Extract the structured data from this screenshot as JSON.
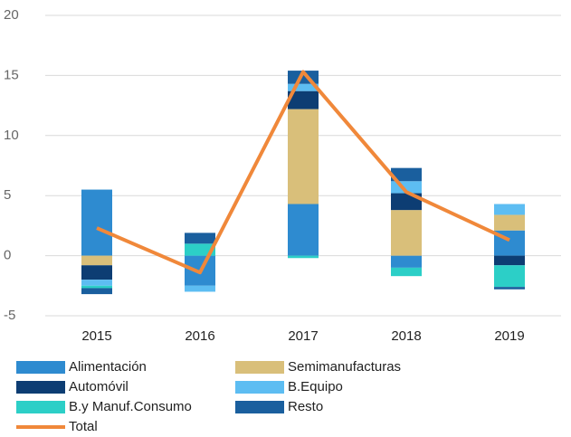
{
  "chart_data": {
    "type": "bar",
    "stacked": true,
    "categories": [
      "2015",
      "2016",
      "2017",
      "2018",
      "2019"
    ],
    "series": [
      {
        "name": "Alimentación",
        "color": "#2e8bd0",
        "values": [
          5.5,
          -2.5,
          4.3,
          -1.0,
          2.1
        ]
      },
      {
        "name": "Semimanufacturas",
        "color": "#d9bf7a",
        "values": [
          -0.8,
          0,
          7.9,
          3.8,
          1.3
        ]
      },
      {
        "name": "Automóvil",
        "color": "#0d3d73",
        "values": [
          -1.2,
          0,
          1.5,
          1.4,
          -0.8
        ]
      },
      {
        "name": "B.Equipo",
        "color": "#5dbdf2",
        "values": [
          -0.5,
          -0.5,
          0.6,
          1.0,
          0.9
        ]
      },
      {
        "name": "B.y Manuf.Consumo",
        "color": "#2ccfc7",
        "values": [
          -0.2,
          1.0,
          -0.2,
          -0.7,
          -1.8
        ]
      },
      {
        "name": "Resto",
        "color": "#1a5f9e",
        "values": [
          -0.5,
          0.9,
          1.1,
          1.1,
          -0.2
        ]
      },
      {
        "name": "Total",
        "type": "line",
        "color": "#f0883a",
        "values": [
          2.3,
          -1.4,
          15.3,
          5.3,
          1.3
        ]
      }
    ],
    "ylim": [
      -5,
      20
    ],
    "yticks": [
      -5,
      0,
      5,
      10,
      15,
      20
    ],
    "grid": true
  }
}
